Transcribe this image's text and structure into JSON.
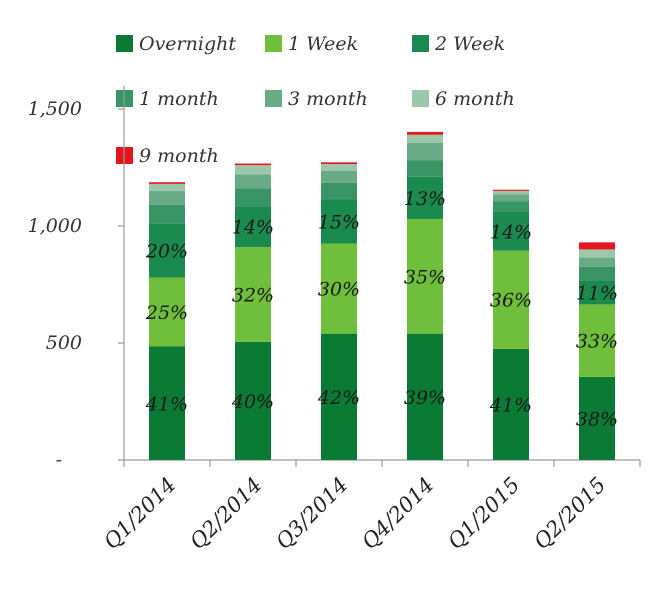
{
  "chart_data": {
    "type": "bar",
    "stacked": true,
    "categories": [
      "Q1/2014",
      "Q2/2014",
      "Q3/2014",
      "Q4/2014",
      "Q1/2015",
      "Q2/2015"
    ],
    "ylim": [
      0,
      1600
    ],
    "yticks": [
      {
        "value": 0,
        "label": "-"
      },
      {
        "value": 500,
        "label": "500"
      },
      {
        "value": 1000,
        "label": "1,000"
      },
      {
        "value": 1500,
        "label": "1,500"
      }
    ],
    "xlabel": "",
    "ylabel": "",
    "title": "",
    "grid": false,
    "legend_position": "top",
    "series": [
      {
        "name": "Overnight",
        "color": "#0b7a35",
        "values": [
          485,
          505,
          540,
          540,
          475,
          355
        ],
        "labels": [
          "41%",
          "40%",
          "42%",
          "39%",
          "41%",
          "38%"
        ]
      },
      {
        "name": "1 Week",
        "color": "#6fbe3c",
        "values": [
          295,
          405,
          385,
          490,
          420,
          310
        ],
        "labels": [
          "25%",
          "32%",
          "30%",
          "35%",
          "36%",
          "33%"
        ]
      },
      {
        "name": "2 Week",
        "color": "#1b8a4f",
        "values": [
          230,
          175,
          190,
          180,
          165,
          100
        ],
        "labels": [
          "20%",
          "14%",
          "15%",
          "13%",
          "14%",
          "11%"
        ]
      },
      {
        "name": "1 month",
        "color": "#3a9566",
        "values": [
          80,
          75,
          70,
          70,
          45,
          60
        ],
        "labels": [
          "",
          "",
          "",
          "",
          "",
          ""
        ]
      },
      {
        "name": "3 month",
        "color": "#6aab87",
        "values": [
          60,
          60,
          50,
          75,
          30,
          40
        ],
        "labels": [
          "",
          "",
          "",
          "",
          "",
          ""
        ]
      },
      {
        "name": "6 month",
        "color": "#9cc7ab",
        "values": [
          30,
          40,
          30,
          35,
          15,
          35
        ],
        "labels": [
          "",
          "",
          "",
          "",
          "",
          ""
        ]
      },
      {
        "name": "9 month",
        "color": "#e3151f",
        "values": [
          7,
          7,
          7,
          12,
          5,
          30
        ],
        "labels": [
          "",
          "",
          "",
          "",
          "",
          ""
        ]
      }
    ]
  }
}
